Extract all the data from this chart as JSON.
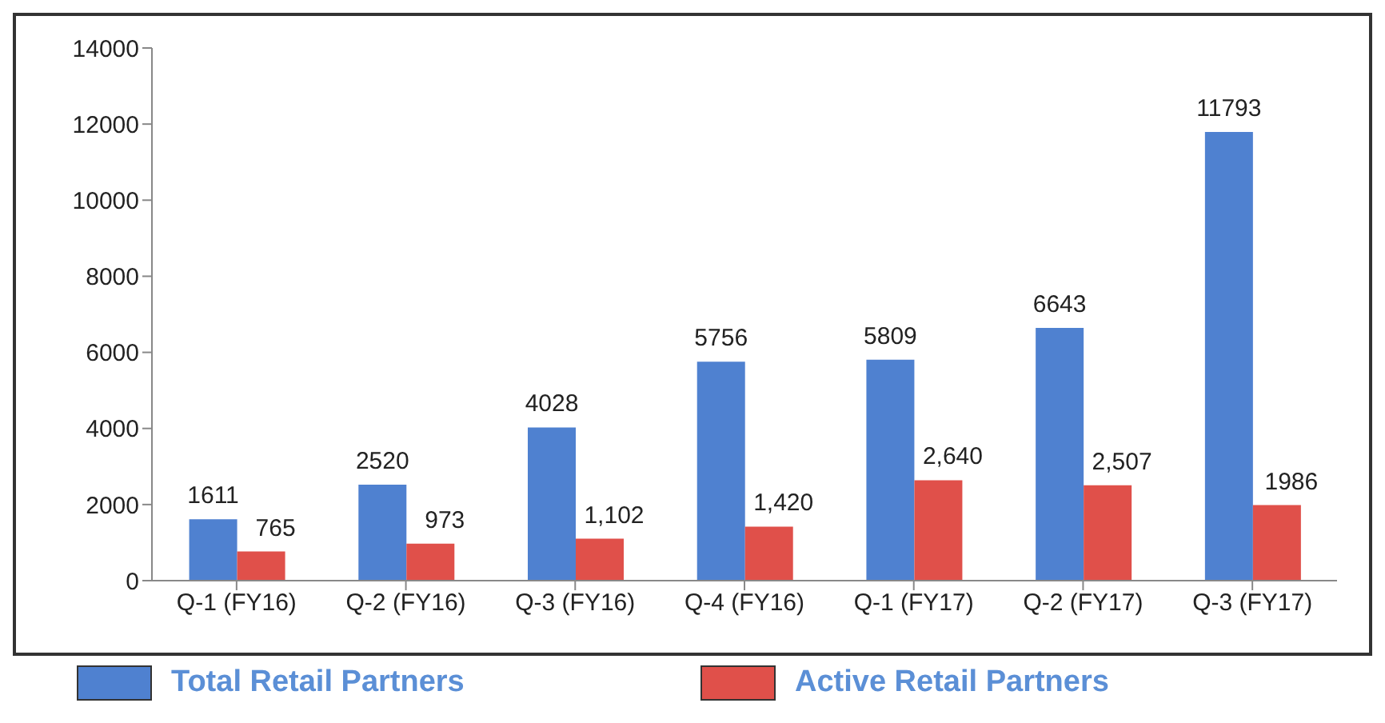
{
  "chart_data": {
    "type": "bar",
    "categories": [
      "Q-1 (FY16)",
      "Q-2 (FY16)",
      "Q-3 (FY16)",
      "Q-4 (FY16)",
      "Q-1 (FY17)",
      "Q-2 (FY17)",
      "Q-3 (FY17)"
    ],
    "series": [
      {
        "name": "Total Retail Partners",
        "color": "#4f81d0",
        "values": [
          1611,
          2520,
          4028,
          5756,
          5809,
          6643,
          11793
        ],
        "value_labels": [
          "1611",
          "2520",
          "4028",
          "5756",
          "5809",
          "6643",
          "11793"
        ]
      },
      {
        "name": "Active Retail Partners",
        "color": "#e0504a",
        "values": [
          765,
          973,
          1102,
          1420,
          2640,
          2507,
          1986
        ],
        "value_labels": [
          "765",
          "973",
          "1,102",
          "1,420",
          "2,640",
          "2,507",
          "1986"
        ]
      }
    ],
    "ylim": [
      0,
      14000
    ],
    "yticks": [
      0,
      2000,
      4000,
      6000,
      8000,
      10000,
      12000,
      14000
    ],
    "grid": false,
    "legend": "bottom"
  }
}
